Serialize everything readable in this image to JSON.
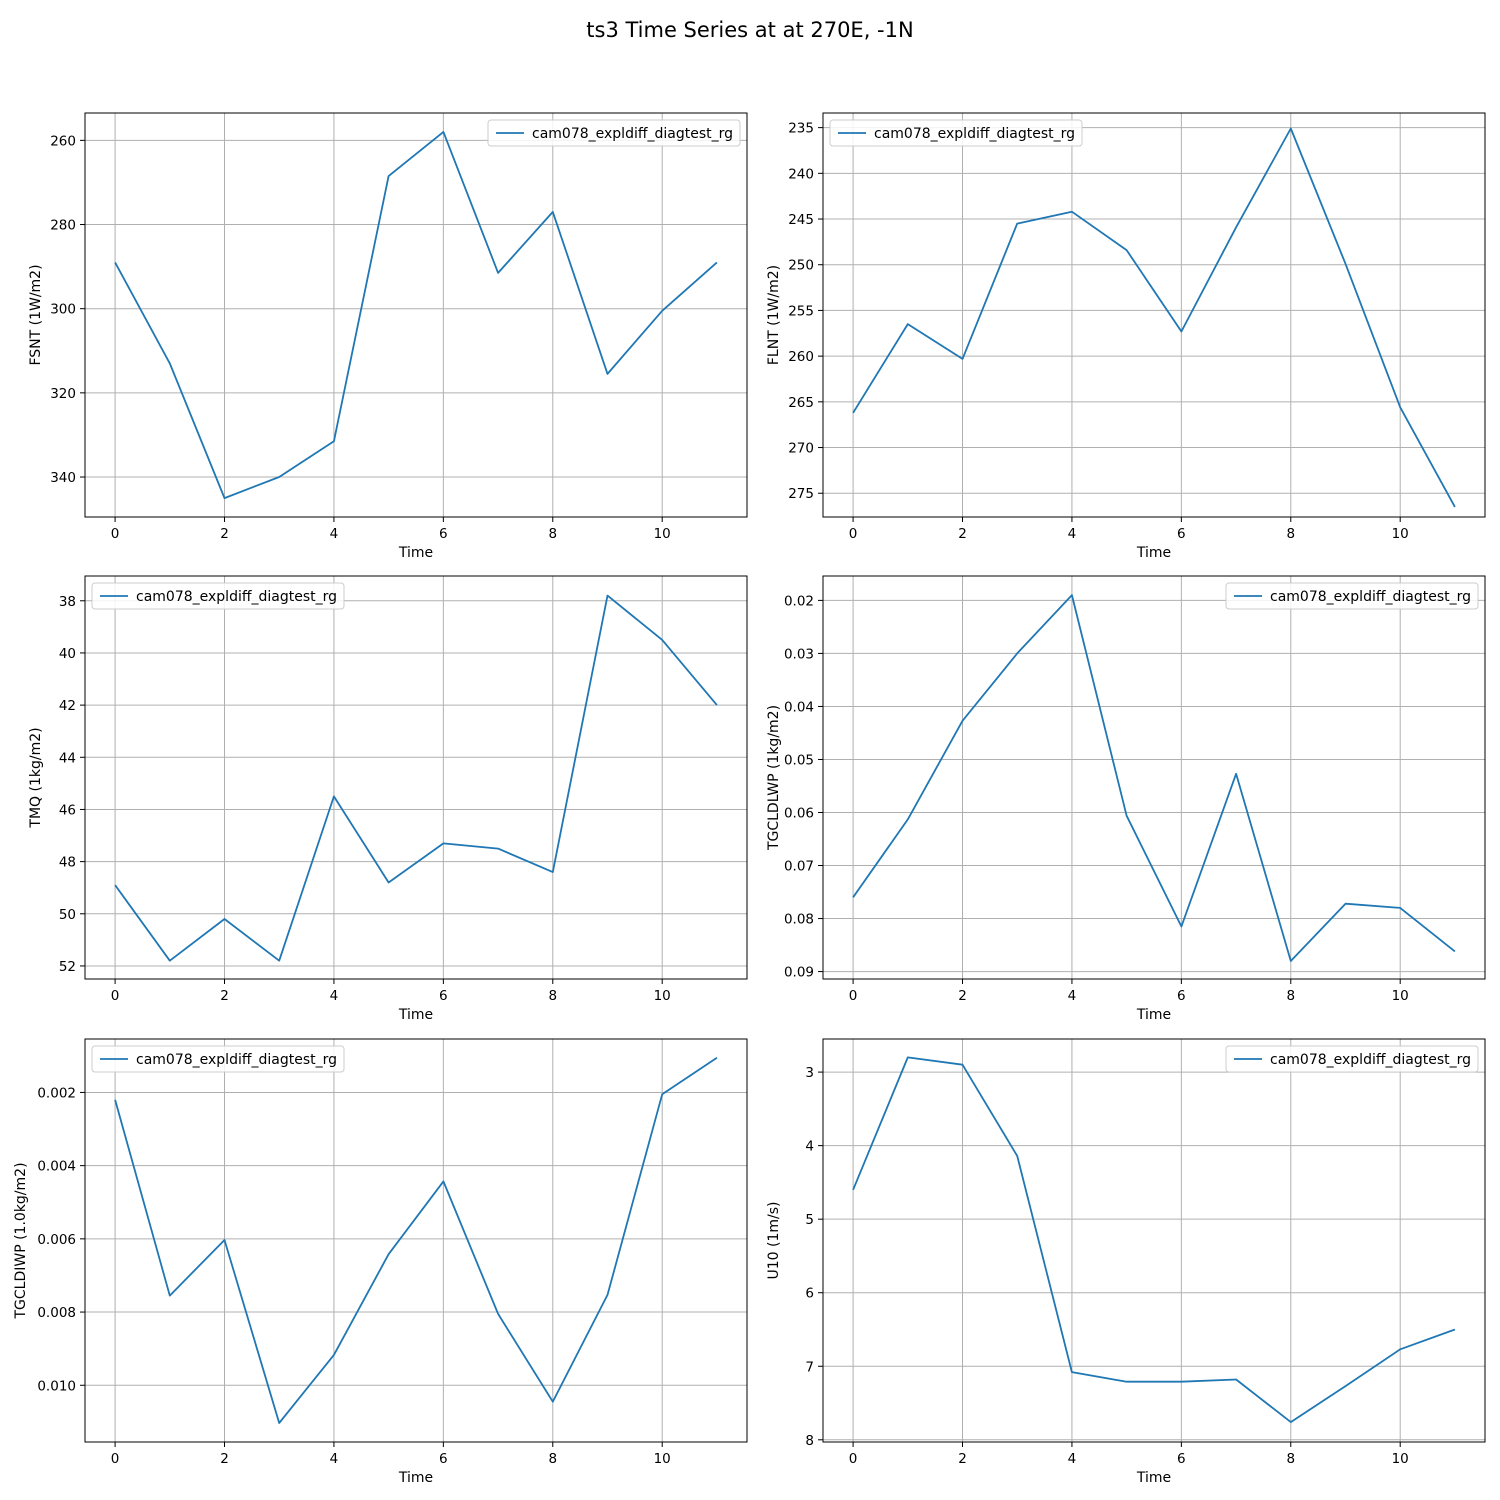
{
  "figure": {
    "title": "ts3 Time Series at at 270E, -1N"
  },
  "colors": {
    "series": "#1f77b4"
  },
  "chart_data": [
    {
      "type": "line",
      "xlabel": "Time",
      "ylabel": "FSNT (1W/m2)",
      "y_inverted": true,
      "grid": true,
      "xlim": [
        -0.55,
        11.55
      ],
      "ylim": [
        349.5,
        253.5
      ],
      "xticks": [
        0,
        2,
        4,
        6,
        8,
        10
      ],
      "yticks": [
        260,
        280,
        300,
        320,
        340
      ],
      "legend_position": "upper right",
      "series": [
        {
          "name": "cam078_expldiff_diagtest_rg",
          "x": [
            0,
            1,
            2,
            3,
            4,
            5,
            6,
            7,
            8,
            9,
            10,
            11
          ],
          "y": [
            289,
            313,
            345,
            340,
            331.5,
            268.5,
            258,
            291.5,
            277,
            315.5,
            300.5,
            289
          ]
        }
      ]
    },
    {
      "type": "line",
      "xlabel": "Time",
      "ylabel": "FLNT (1W/m2)",
      "y_inverted": true,
      "grid": true,
      "xlim": [
        -0.55,
        11.55
      ],
      "ylim": [
        277.6,
        233.4
      ],
      "xticks": [
        0,
        2,
        4,
        6,
        8,
        10
      ],
      "yticks": [
        235,
        240,
        245,
        250,
        255,
        260,
        265,
        270,
        275
      ],
      "legend_position": "upper left",
      "series": [
        {
          "name": "cam078_expldiff_diagtest_rg",
          "x": [
            0,
            1,
            2,
            3,
            4,
            5,
            6,
            7,
            8,
            9,
            10,
            11
          ],
          "y": [
            266.2,
            256.5,
            260.3,
            245.5,
            244.2,
            248.4,
            257.3,
            245.9,
            235.1,
            249.9,
            265.6,
            276.5
          ]
        }
      ]
    },
    {
      "type": "line",
      "xlabel": "Time",
      "ylabel": "TMQ (1kg/m2)",
      "y_inverted": true,
      "grid": true,
      "xlim": [
        -0.55,
        11.55
      ],
      "ylim": [
        52.5,
        37.05
      ],
      "xticks": [
        0,
        2,
        4,
        6,
        8,
        10
      ],
      "yticks": [
        38,
        40,
        42,
        44,
        46,
        48,
        50,
        52
      ],
      "legend_position": "upper left",
      "series": [
        {
          "name": "cam078_expldiff_diagtest_rg",
          "x": [
            0,
            1,
            2,
            3,
            4,
            5,
            6,
            7,
            8,
            9,
            10,
            11
          ],
          "y": [
            48.9,
            51.8,
            50.2,
            51.8,
            45.5,
            48.8,
            47.3,
            47.5,
            48.4,
            37.8,
            39.5,
            42.0
          ]
        }
      ]
    },
    {
      "type": "line",
      "xlabel": "Time",
      "ylabel": "TGCLDLWP (1kg/m2)",
      "y_inverted": true,
      "grid": true,
      "xlim": [
        -0.55,
        11.55
      ],
      "ylim": [
        0.0914,
        0.0154
      ],
      "xticks": [
        0,
        2,
        4,
        6,
        8,
        10
      ],
      "yticks": [
        0.02,
        0.03,
        0.04,
        0.05,
        0.06,
        0.07,
        0.08,
        0.09
      ],
      "legend_position": "upper right",
      "series": [
        {
          "name": "cam078_expldiff_diagtest_rg",
          "x": [
            0,
            1,
            2,
            3,
            4,
            5,
            6,
            7,
            8,
            9,
            10,
            11
          ],
          "y": [
            0.076,
            0.0613,
            0.0427,
            0.03,
            0.019,
            0.0606,
            0.0815,
            0.0527,
            0.088,
            0.0772,
            0.078,
            0.0862
          ]
        }
      ]
    },
    {
      "type": "line",
      "xlabel": "Time",
      "ylabel": "TGCLDIWP (1.0kg/m2)",
      "y_inverted": true,
      "grid": true,
      "xlim": [
        -0.55,
        11.55
      ],
      "ylim": [
        0.01155,
        0.00054
      ],
      "xticks": [
        0,
        2,
        4,
        6,
        8,
        10
      ],
      "yticks": [
        0.002,
        0.004,
        0.006,
        0.008,
        0.01
      ],
      "ytick_labels": [
        "0.002",
        "0.004",
        "0.006",
        "0.008",
        "0.010"
      ],
      "legend_position": "upper left",
      "series": [
        {
          "name": "cam078_expldiff_diagtest_rg",
          "x": [
            0,
            1,
            2,
            3,
            4,
            5,
            6,
            7,
            8,
            9,
            10,
            11
          ],
          "y": [
            0.0022,
            0.00755,
            0.00603,
            0.01103,
            0.00917,
            0.00642,
            0.00443,
            0.00805,
            0.01045,
            0.00753,
            0.00205,
            0.00105
          ]
        }
      ]
    },
    {
      "type": "line",
      "xlabel": "Time",
      "ylabel": "U10 (1m/s)",
      "y_inverted": true,
      "grid": true,
      "xlim": [
        -0.55,
        11.55
      ],
      "ylim": [
        8.03,
        2.55
      ],
      "xticks": [
        0,
        2,
        4,
        6,
        8,
        10
      ],
      "yticks": [
        3,
        4,
        5,
        6,
        7,
        8
      ],
      "legend_position": "upper right",
      "series": [
        {
          "name": "cam078_expldiff_diagtest_rg",
          "x": [
            0,
            1,
            2,
            3,
            4,
            5,
            6,
            7,
            8,
            9,
            10,
            11
          ],
          "y": [
            4.6,
            2.8,
            2.9,
            4.14,
            7.08,
            7.21,
            7.21,
            7.18,
            7.76,
            7.27,
            6.77,
            6.5
          ]
        }
      ]
    }
  ]
}
